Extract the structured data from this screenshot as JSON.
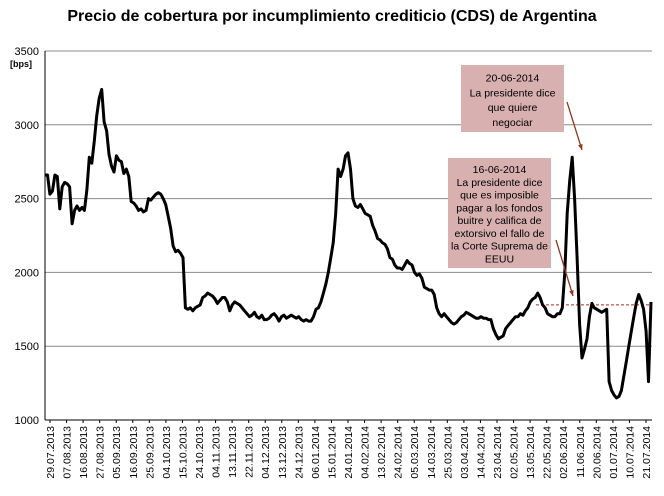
{
  "chart_data": {
    "type": "line",
    "title": "Precio de cobertura por incumplimiento crediticio (CDS) de Argentina",
    "ylabel": "[bps]",
    "ylim": [
      1000,
      3500
    ],
    "yticks": [
      1000,
      1500,
      2000,
      2500,
      3000,
      3500
    ],
    "grid": "horizontal",
    "x_tick_labels": [
      "29.07.2013",
      "07.08.2013",
      "16.08.2013",
      "27.08.2013",
      "05.09.2013",
      "16.09.2013",
      "25.09.2013",
      "04.10.2013",
      "15.10.2013",
      "24.10.2013",
      "04.11.2013",
      "13.11.2013",
      "22.11.2013",
      "04.12.2013",
      "13.12.2013",
      "24.12.2013",
      "06.01.2014",
      "15.01.2014",
      "24.01.2014",
      "04.02.2014",
      "13.02.2014",
      "24.02.2014",
      "05.03.2014",
      "14.03.2014",
      "25.03.2014",
      "03.04.2014",
      "14.04.2014",
      "23.04.2014",
      "02.05.2014",
      "13.05.2014",
      "22.05.2014",
      "02.06.2014",
      "11.06.2014",
      "20.06.2014",
      "01.07.2014",
      "10.07.2014",
      "21.07.2014"
    ],
    "series": [
      {
        "values": [
          2660,
          2660,
          2530,
          2550,
          2660,
          2650,
          2430,
          2580,
          2610,
          2600,
          2580,
          2330,
          2420,
          2450,
          2420,
          2440,
          2420,
          2560,
          2780,
          2740,
          2890,
          3060,
          3180,
          3240,
          3020,
          2960,
          2800,
          2720,
          2680,
          2790,
          2760,
          2750,
          2670,
          2700,
          2650,
          2480,
          2470,
          2450,
          2420,
          2430,
          2410,
          2420,
          2500,
          2490,
          2510,
          2530,
          2540,
          2530,
          2500,
          2460,
          2380,
          2300,
          2180,
          2140,
          2150,
          2130,
          2100,
          1760,
          1750,
          1760,
          1740,
          1760,
          1770,
          1780,
          1830,
          1840,
          1860,
          1850,
          1840,
          1820,
          1790,
          1810,
          1830,
          1830,
          1800,
          1740,
          1780,
          1800,
          1790,
          1780,
          1760,
          1740,
          1720,
          1700,
          1710,
          1730,
          1700,
          1690,
          1710,
          1680,
          1680,
          1690,
          1710,
          1720,
          1700,
          1670,
          1700,
          1710,
          1690,
          1700,
          1710,
          1700,
          1690,
          1700,
          1680,
          1670,
          1680,
          1670,
          1670,
          1700,
          1750,
          1760,
          1800,
          1860,
          1920,
          2000,
          2100,
          2200,
          2400,
          2700,
          2650,
          2700,
          2790,
          2810,
          2700,
          2500,
          2450,
          2440,
          2460,
          2430,
          2400,
          2390,
          2380,
          2320,
          2280,
          2230,
          2220,
          2200,
          2190,
          2160,
          2100,
          2090,
          2050,
          2030,
          2030,
          2020,
          2050,
          2080,
          2060,
          2050,
          2000,
          1980,
          1990,
          1960,
          1900,
          1890,
          1880,
          1880,
          1850,
          1760,
          1720,
          1700,
          1720,
          1700,
          1680,
          1660,
          1650,
          1660,
          1680,
          1700,
          1710,
          1730,
          1720,
          1710,
          1700,
          1690,
          1690,
          1700,
          1690,
          1690,
          1680,
          1680,
          1620,
          1580,
          1550,
          1560,
          1570,
          1620,
          1640,
          1660,
          1680,
          1700,
          1700,
          1720,
          1710,
          1740,
          1760,
          1800,
          1820,
          1830,
          1860,
          1830,
          1780,
          1760,
          1720,
          1710,
          1700,
          1700,
          1720,
          1720,
          1760,
          2000,
          2400,
          2620,
          2780,
          2500,
          2100,
          1650,
          1420,
          1480,
          1550,
          1700,
          1790,
          1760,
          1750,
          1740,
          1730,
          1740,
          1750,
          1260,
          1200,
          1170,
          1150,
          1160,
          1200,
          1300,
          1400,
          1500,
          1600,
          1700,
          1790,
          1850,
          1810,
          1750,
          1600,
          1260,
          1800
        ]
      }
    ],
    "reference_line": {
      "value": 1780,
      "style": "dashed",
      "color": "#a0302a"
    },
    "annotations": [
      {
        "lines": [
          "20-06-2014",
          "La presidente dice",
          "que quiere",
          "negociar"
        ]
      },
      {
        "lines": [
          "16-06-2014",
          "La presidente dice",
          "que es imposible",
          "pagar a los fondos",
          "buitre y califica de",
          "extorsivo el fallo de",
          "la Corte Suprema de",
          "EEUU"
        ]
      }
    ],
    "colors": {
      "line": "#000000",
      "grid": "#888888",
      "annotation_box": "#d9b0b0",
      "arrow": "#8b3a1e"
    }
  }
}
